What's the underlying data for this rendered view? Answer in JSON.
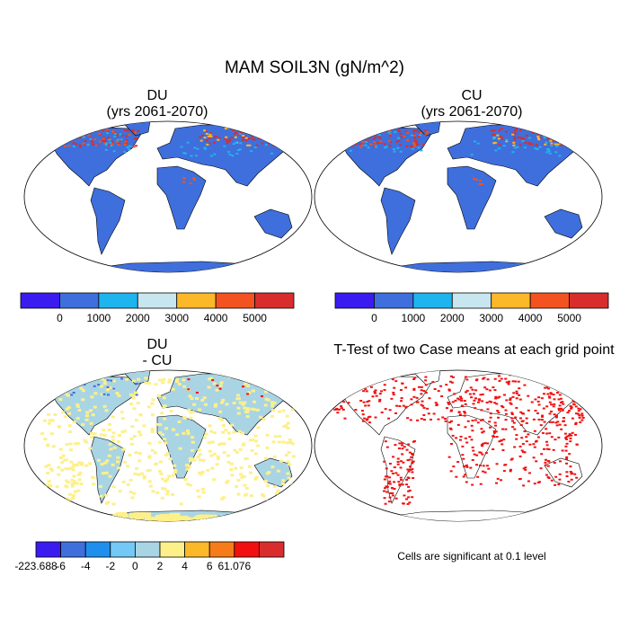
{
  "title": "MAM SOIL3N (gN/m^2)",
  "panels": {
    "du": {
      "name": "DU",
      "years": "(yrs 2061-2070)"
    },
    "cu": {
      "name": "CU",
      "years": "(yrs 2061-2070)"
    },
    "diff": {
      "line1": "DU",
      "line2": "- CU"
    },
    "ttest": {
      "title": "T-Test of two Case means at each grid point",
      "note": "Cells are significant at 0.1 level"
    }
  },
  "colorbar_top": {
    "colors": [
      "#3a1cf0",
      "#3f6fdc",
      "#1eb4ee",
      "#c8e6f0",
      "#fbb829",
      "#f35320",
      "#d92d2d"
    ],
    "labels": [
      "0",
      "1000",
      "2000",
      "3000",
      "4000",
      "5000"
    ]
  },
  "colorbar_diff": {
    "colors": [
      "#3a1cf0",
      "#3f6fdc",
      "#1f8fee",
      "#73c8f5",
      "#a9d4e4",
      "#fdf08a",
      "#fbb829",
      "#f57c18",
      "#f20f0f",
      "#d92d2d"
    ],
    "labels": [
      "-223.688",
      "-6",
      "-4",
      "-2",
      "0",
      "2",
      "4",
      "6",
      "61.076"
    ]
  },
  "colors": {
    "land_base": "#3f6fdc",
    "diff_base": "#a9d4e4",
    "diff_pos": "#fdf08a",
    "significant": "#f20f0f"
  }
}
